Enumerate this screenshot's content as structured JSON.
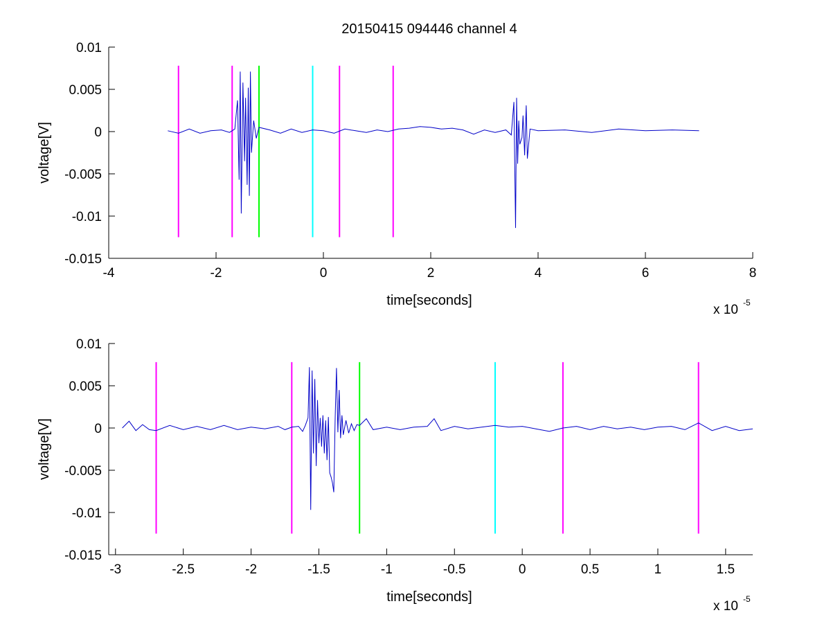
{
  "figure": {
    "title": "20150415 094446 channel 4",
    "background": "#ffffff",
    "trace_color": "#0000c8"
  },
  "chart_data": [
    {
      "type": "line",
      "title": "20150415 094446 channel 4",
      "xlabel": "time[seconds]",
      "ylabel": "voltage[V]",
      "x_exponent_label": "x 10",
      "x_exponent": "-5",
      "xlim": [
        -4,
        8
      ],
      "ylim": [
        -0.015,
        0.01
      ],
      "xticks": [
        -4,
        -2,
        0,
        2,
        4,
        6,
        8
      ],
      "xtick_labels": [
        "-4",
        "-2",
        "0",
        "2",
        "4",
        "6",
        "8"
      ],
      "yticks": [
        0.01,
        0.005,
        0,
        -0.005,
        -0.01,
        -0.015
      ],
      "ytick_labels": [
        "0.01",
        "0.005",
        "0",
        "-0.005",
        "-0.01",
        "-0.015"
      ],
      "grid": false,
      "series": [
        {
          "x": [
            -2.9,
            -2.7,
            -2.5,
            -2.3,
            -2.1,
            -1.9,
            -1.75,
            -1.65,
            -1.6,
            -1.57,
            -1.55,
            -1.53,
            -1.5,
            -1.47,
            -1.45,
            -1.42,
            -1.4,
            -1.38,
            -1.36,
            -1.34,
            -1.3,
            -1.25,
            -1.2,
            -1.0,
            -0.8,
            -0.6,
            -0.4,
            -0.2,
            0.0,
            0.2,
            0.4,
            0.6,
            0.8,
            1.0,
            1.2,
            1.4,
            1.6,
            1.8,
            2.0,
            2.2,
            2.4,
            2.6,
            2.8,
            3.0,
            3.2,
            3.4,
            3.5,
            3.55,
            3.58,
            3.6,
            3.62,
            3.64,
            3.66,
            3.7,
            3.72,
            3.75,
            3.78,
            3.8,
            3.85,
            4.0,
            4.5,
            5.0,
            5.5,
            6.0,
            6.5,
            7.0
          ],
          "y": [
            0.0001,
            -0.0002,
            0.0003,
            -0.0002,
            0.0001,
            0.0002,
            -0.0001,
            0.0003,
            0.0037,
            -0.0057,
            0.0071,
            -0.0097,
            0.0058,
            -0.0035,
            0.004,
            -0.0063,
            0.0052,
            -0.0076,
            0.0071,
            -0.0025,
            0.0013,
            -0.0008,
            0.0005,
            0.0002,
            -0.0002,
            0.0003,
            -0.0001,
            0.0002,
            0.0001,
            -0.0002,
            0.0003,
            0.0001,
            -0.0001,
            0.0002,
            0.0,
            0.0003,
            0.0004,
            0.0006,
            0.0005,
            0.0003,
            0.0004,
            0.0002,
            -0.0003,
            0.0002,
            -0.0001,
            0.0002,
            -0.0004,
            0.0035,
            -0.0114,
            0.004,
            -0.0038,
            0.0013,
            -0.0015,
            -0.0007,
            0.0019,
            -0.0028,
            0.0031,
            -0.0032,
            0.0003,
            0.0001,
            0.0002,
            -0.0001,
            0.0003,
            0.0001,
            0.0002,
            0.0001
          ]
        }
      ],
      "markers": [
        {
          "x": -2.7,
          "color": "#ff00ff"
        },
        {
          "x": -1.7,
          "color": "#ff00ff"
        },
        {
          "x": -1.2,
          "color": "#00ff00"
        },
        {
          "x": -0.2,
          "color": "#00ffff"
        },
        {
          "x": 0.3,
          "color": "#ff00ff"
        },
        {
          "x": 1.3,
          "color": "#ff00ff"
        }
      ],
      "marker_y_range": [
        -0.0125,
        0.0078
      ]
    },
    {
      "type": "line",
      "title": "",
      "xlabel": "time[seconds]",
      "ylabel": "voltage[V]",
      "x_exponent_label": "x 10",
      "x_exponent": "-5",
      "xlim": [
        -3.05,
        1.7
      ],
      "ylim": [
        -0.015,
        0.01
      ],
      "xticks": [
        -3,
        -2.5,
        -2,
        -1.5,
        -1,
        -0.5,
        0,
        0.5,
        1,
        1.5
      ],
      "xtick_labels": [
        "-3",
        "-2.5",
        "-2",
        "-1.5",
        "-1",
        "-0.5",
        "0",
        "0.5",
        "1",
        "1.5"
      ],
      "yticks": [
        0.01,
        0.005,
        0,
        -0.005,
        -0.01,
        -0.015
      ],
      "ytick_labels": [
        "0.01",
        "0.005",
        "0",
        "-0.005",
        "-0.01",
        "-0.015"
      ],
      "grid": false,
      "series": [
        {
          "x": [
            -2.95,
            -2.9,
            -2.85,
            -2.8,
            -2.75,
            -2.7,
            -2.6,
            -2.5,
            -2.4,
            -2.3,
            -2.2,
            -2.1,
            -2.0,
            -1.9,
            -1.8,
            -1.75,
            -1.7,
            -1.65,
            -1.62,
            -1.6,
            -1.58,
            -1.57,
            -1.56,
            -1.55,
            -1.54,
            -1.53,
            -1.52,
            -1.51,
            -1.5,
            -1.49,
            -1.48,
            -1.47,
            -1.46,
            -1.45,
            -1.44,
            -1.43,
            -1.42,
            -1.41,
            -1.4,
            -1.39,
            -1.38,
            -1.37,
            -1.36,
            -1.35,
            -1.34,
            -1.33,
            -1.32,
            -1.3,
            -1.28,
            -1.26,
            -1.24,
            -1.22,
            -1.2,
            -1.15,
            -1.1,
            -1.0,
            -0.9,
            -0.8,
            -0.7,
            -0.65,
            -0.6,
            -0.5,
            -0.4,
            -0.3,
            -0.2,
            -0.1,
            0.0,
            0.1,
            0.2,
            0.3,
            0.4,
            0.5,
            0.6,
            0.7,
            0.8,
            0.9,
            1.0,
            1.1,
            1.2,
            1.3,
            1.4,
            1.5,
            1.6,
            1.7
          ],
          "y": [
            0.0,
            0.0008,
            -0.0003,
            0.0004,
            -0.0002,
            -0.0003,
            0.0003,
            -0.0002,
            0.0002,
            -0.0002,
            0.0003,
            -0.0002,
            0.0001,
            -0.0001,
            0.0002,
            -0.0002,
            0.0001,
            0.0002,
            -0.0004,
            0.0003,
            0.0012,
            0.0072,
            -0.0097,
            0.0068,
            -0.003,
            0.0058,
            -0.0045,
            0.0033,
            -0.0018,
            0.0012,
            -0.0022,
            0.0015,
            -0.003,
            0.0009,
            -0.0038,
            0.0013,
            -0.0053,
            -0.0058,
            -0.0065,
            -0.0076,
            0.0012,
            0.0071,
            -0.0005,
            0.0045,
            -0.0012,
            0.0015,
            -0.0008,
            0.0009,
            -0.0006,
            0.0005,
            -0.0003,
            0.0004,
            0.0003,
            0.0011,
            -0.0002,
            0.0001,
            -0.0002,
            0.0001,
            0.0002,
            0.0011,
            -0.0003,
            0.0002,
            -0.0001,
            0.0001,
            0.0003,
            0.0001,
            0.0002,
            -0.0001,
            -0.0004,
            0.0,
            0.0002,
            -0.0002,
            0.0002,
            -0.0001,
            0.0001,
            -0.0002,
            0.0001,
            0.0002,
            -0.0002,
            0.0006,
            -0.0003,
            0.0002,
            -0.0003,
            -0.0001
          ]
        }
      ],
      "markers": [
        {
          "x": -2.7,
          "color": "#ff00ff"
        },
        {
          "x": -1.7,
          "color": "#ff00ff"
        },
        {
          "x": -1.2,
          "color": "#00ff00"
        },
        {
          "x": -0.2,
          "color": "#00ffff"
        },
        {
          "x": 0.3,
          "color": "#ff00ff"
        },
        {
          "x": 1.3,
          "color": "#ff00ff"
        }
      ],
      "marker_y_range": [
        -0.0125,
        0.0078
      ]
    }
  ]
}
